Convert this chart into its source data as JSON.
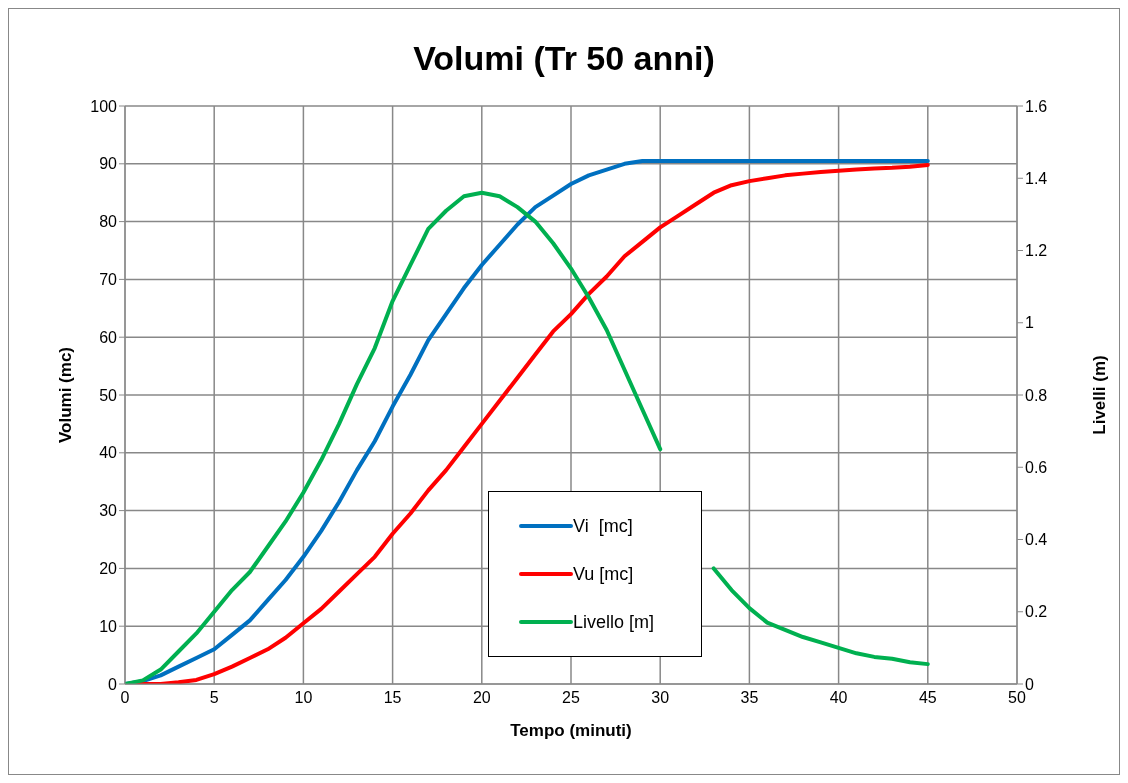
{
  "chart_data": {
    "type": "line",
    "title": "Volumi (Tr 50 anni)",
    "xlabel": "Tempo (minuti)",
    "ylabel": "Volumi (mc)",
    "y2label": "Livelli (m)",
    "x": [
      0,
      1,
      2,
      3,
      4,
      5,
      6,
      7,
      8,
      9,
      10,
      11,
      12,
      13,
      14,
      15,
      16,
      17,
      18,
      19,
      20,
      21,
      22,
      23,
      24,
      25,
      26,
      27,
      28,
      29,
      30,
      31,
      32,
      33,
      34,
      35,
      36,
      37,
      38,
      39,
      40,
      41,
      42,
      43,
      44,
      45
    ],
    "series": [
      {
        "name": "Vi  [mc]",
        "color": "#0070c0",
        "values": [
          0,
          0.5,
          1.5,
          3,
          4.5,
          6,
          8.5,
          11,
          14.5,
          18,
          22,
          26.5,
          31.5,
          37,
          42,
          48,
          53.5,
          59.5,
          64,
          68.5,
          72.5,
          76,
          79.5,
          82.5,
          84.5,
          86.5,
          88,
          89,
          90,
          90.5,
          90.5,
          90.5,
          90.5,
          90.5,
          90.5,
          90.5,
          90.5,
          90.5,
          90.5,
          90.5,
          90.5,
          90.5,
          90.5,
          90.5,
          90.5,
          90.5
        ]
      },
      {
        "name": "Vu [mc]",
        "color": "#ff0000",
        "values": [
          0,
          0,
          0,
          0.3,
          0.7,
          1.7,
          3,
          4.5,
          6,
          8,
          10.5,
          13,
          16,
          19,
          22,
          26,
          29.5,
          33.5,
          37,
          41,
          45,
          49,
          53,
          57,
          61,
          64,
          67.5,
          70.5,
          74,
          76.5,
          79,
          81,
          83,
          85,
          86.3,
          87,
          87.5,
          88,
          88.3,
          88.6,
          88.8,
          89,
          89.2,
          89.3,
          89.5,
          89.8
        ]
      },
      {
        "name": "Livello [m]",
        "color": "#00b050",
        "axis": "y2",
        "values": [
          0,
          0.01,
          0.04,
          0.09,
          0.14,
          0.2,
          0.26,
          0.31,
          0.38,
          0.45,
          0.53,
          0.62,
          0.72,
          0.83,
          0.93,
          1.06,
          1.16,
          1.26,
          1.31,
          1.35,
          1.36,
          1.35,
          1.32,
          1.28,
          1.22,
          1.15,
          1.07,
          0.98,
          0.87,
          0.76,
          0.65,
          null,
          null,
          0.32,
          0.26,
          0.21,
          0.17,
          0.15,
          0.13,
          0.115,
          0.1,
          0.085,
          0.075,
          0.07,
          0.06,
          0.055
        ]
      }
    ],
    "xlim": [
      0,
      50
    ],
    "xticks": [
      0,
      5,
      10,
      15,
      20,
      25,
      30,
      35,
      40,
      45,
      50
    ],
    "ylim": [
      0,
      100
    ],
    "yticks": [
      0,
      10,
      20,
      30,
      40,
      50,
      60,
      70,
      80,
      90,
      100
    ],
    "y2lim": [
      0,
      1.6
    ],
    "y2ticks": [
      0,
      0.2,
      0.4,
      0.6,
      0.8,
      1,
      1.2,
      1.4,
      1.6
    ],
    "grid": true,
    "legend": "bottom",
    "marker": "none",
    "line_style": "solid"
  }
}
